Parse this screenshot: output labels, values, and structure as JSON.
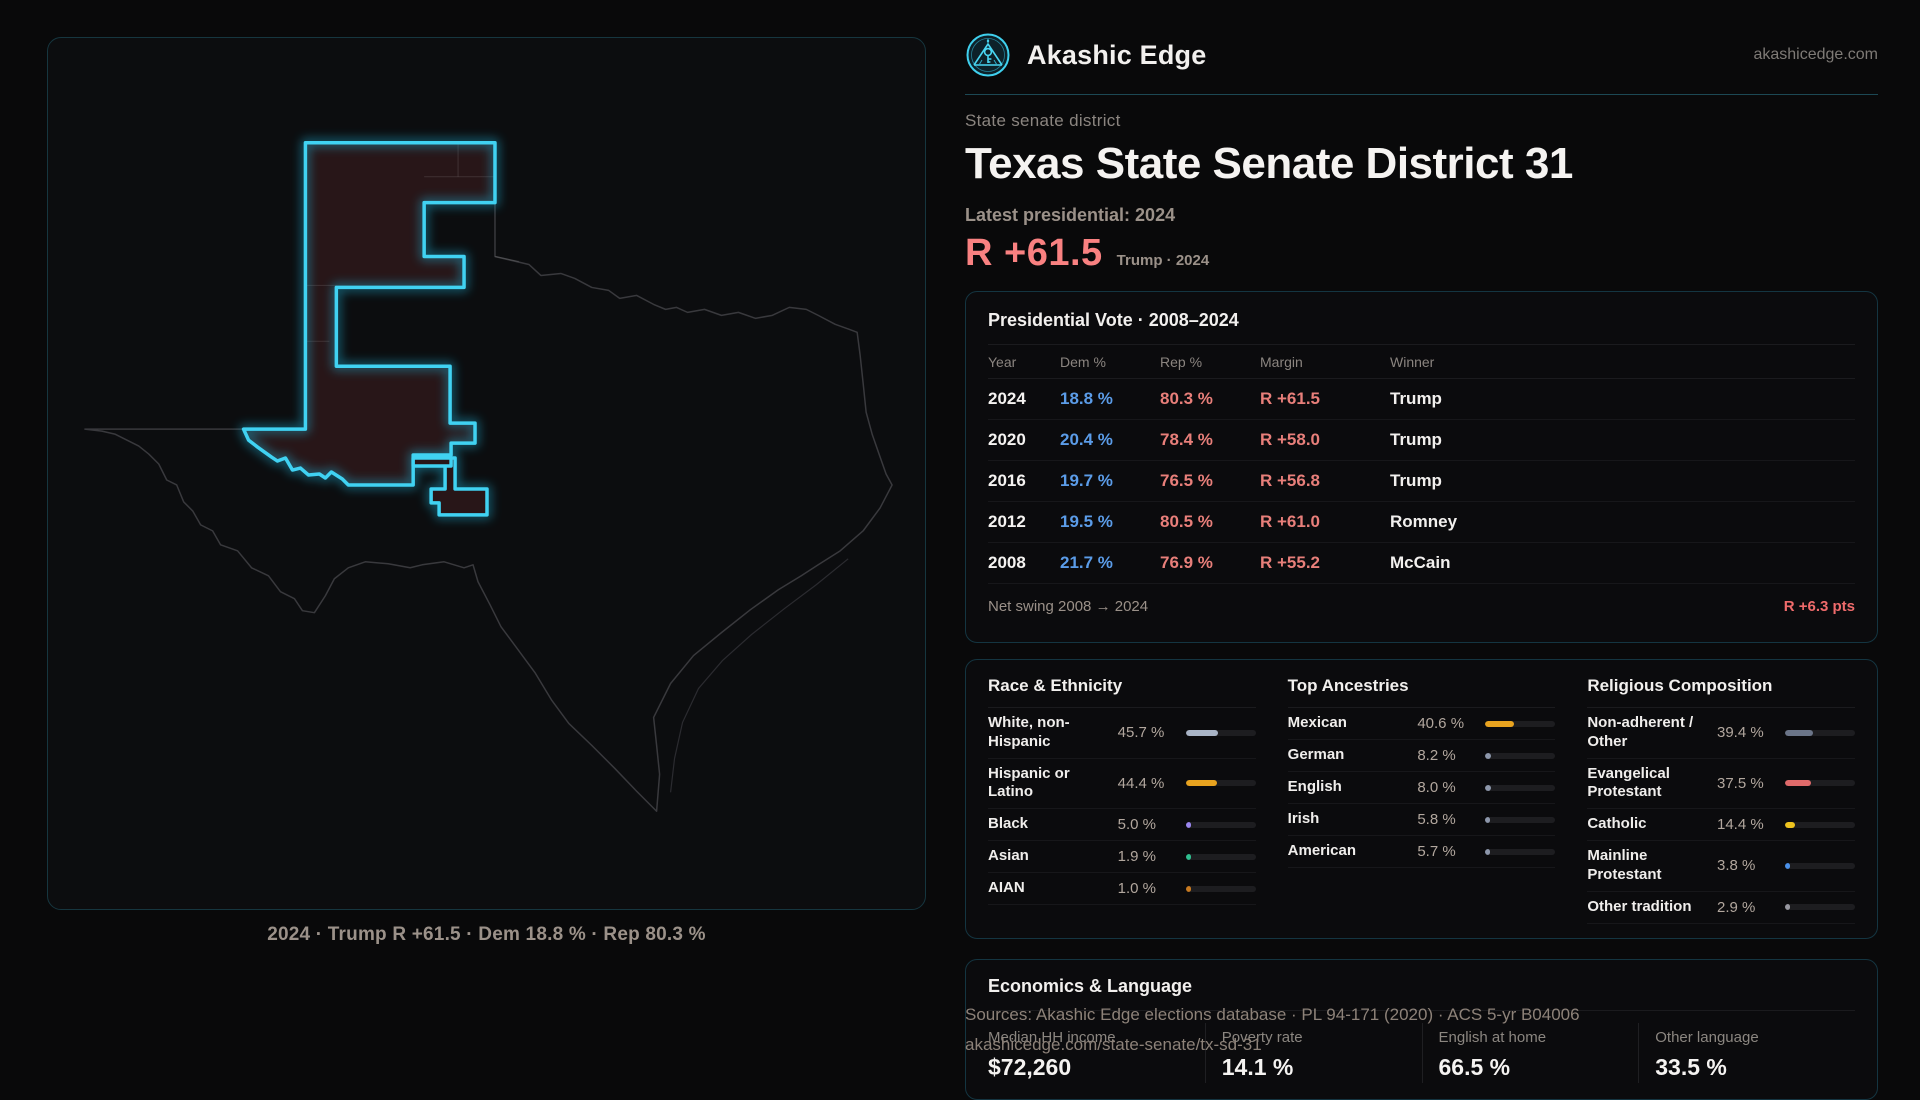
{
  "brand": {
    "name": "Akashic Edge",
    "domain": "akashicedge.com"
  },
  "header": {
    "kicker": "State senate district",
    "title": "Texas State Senate District 31",
    "latest_label": "Latest presidential: 2024",
    "margin_value": "R +61.5",
    "margin_note": "Trump · 2024"
  },
  "map": {
    "caption": "2024 · Trump R +61.5 · Dem 18.8 % · Rep 80.3 %"
  },
  "vote_table": {
    "title": "Presidential Vote · 2008–2024",
    "columns": [
      "Year",
      "Dem %",
      "Rep %",
      "Margin",
      "Winner"
    ],
    "rows": [
      {
        "year": "2024",
        "dem": "18.8 %",
        "rep": "80.3 %",
        "margin": "R +61.5",
        "winner": "Trump"
      },
      {
        "year": "2020",
        "dem": "20.4 %",
        "rep": "78.4 %",
        "margin": "R +58.0",
        "winner": "Trump"
      },
      {
        "year": "2016",
        "dem": "19.7 %",
        "rep": "76.5 %",
        "margin": "R +56.8",
        "winner": "Trump"
      },
      {
        "year": "2012",
        "dem": "19.5 %",
        "rep": "80.5 %",
        "margin": "R +61.0",
        "winner": "Romney"
      },
      {
        "year": "2008",
        "dem": "21.7 %",
        "rep": "76.9 %",
        "margin": "R +55.2",
        "winner": "McCain"
      }
    ],
    "net_swing_label": "Net swing 2008 → 2024",
    "net_swing_value": "R +6.3 pts"
  },
  "demographics": {
    "race": {
      "title": "Race & Ethnicity",
      "items": [
        {
          "label": "White, non-Hispanic",
          "value": "45.7 %",
          "pct": 45.7,
          "color": "#a9b4c6"
        },
        {
          "label": "Hispanic or Latino",
          "value": "44.4 %",
          "pct": 44.4,
          "color": "#e8a31f"
        },
        {
          "label": "Black",
          "value": "5.0 %",
          "pct": 5.0,
          "color": "#9a86ee"
        },
        {
          "label": "Asian",
          "value": "1.9 %",
          "pct": 1.9,
          "color": "#2fbf8f"
        },
        {
          "label": "AIAN",
          "value": "1.0 %",
          "pct": 1.0,
          "color": "#c87a20"
        }
      ]
    },
    "ancestries": {
      "title": "Top Ancestries",
      "items": [
        {
          "label": "Mexican",
          "value": "40.6 %",
          "pct": 40.6,
          "color": "#e8a31f"
        },
        {
          "label": "German",
          "value": "8.2 %",
          "pct": 8.2,
          "color": "#8d97ab"
        },
        {
          "label": "English",
          "value": "8.0 %",
          "pct": 8.0,
          "color": "#8d97ab"
        },
        {
          "label": "Irish",
          "value": "5.8 %",
          "pct": 5.8,
          "color": "#8d97ab"
        },
        {
          "label": "American",
          "value": "5.7 %",
          "pct": 5.7,
          "color": "#8d97ab"
        }
      ]
    },
    "religion": {
      "title": "Religious Composition",
      "items": [
        {
          "label": "Non-adherent / Other",
          "value": "39.4 %",
          "pct": 39.4,
          "color": "#6b7588"
        },
        {
          "label": "Evangelical Protestant",
          "value": "37.5 %",
          "pct": 37.5,
          "color": "#e06a6a"
        },
        {
          "label": "Catholic",
          "value": "14.4 %",
          "pct": 14.4,
          "color": "#eec31e"
        },
        {
          "label": "Mainline Protestant",
          "value": "3.8 %",
          "pct": 3.8,
          "color": "#4a90e8"
        },
        {
          "label": "Other tradition",
          "value": "2.9 %",
          "pct": 2.9,
          "color": "#97979f"
        }
      ]
    }
  },
  "economics": {
    "title": "Economics & Language",
    "stats": [
      {
        "label": "Median HH income",
        "value": "$72,260"
      },
      {
        "label": "Poverty rate",
        "value": "14.1 %"
      },
      {
        "label": "English at home",
        "value": "66.5 %"
      },
      {
        "label": "Other language",
        "value": "33.5 %"
      }
    ]
  },
  "footer": {
    "line1": "Sources: Akashic Edge elections database · PL 94-171 (2020) · ACS 5-yr B04006",
    "line2": "akashicedge.com/state-senate/tx-sd-31"
  },
  "colors": {
    "accent_cyan": "#40d2f2",
    "dem_blue": "#5b9ce8",
    "rep_red": "#e87f7a",
    "district_fill": "#281618"
  }
}
